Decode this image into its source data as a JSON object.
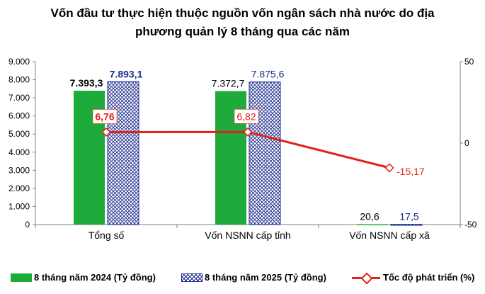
{
  "chart_data": {
    "type": "bar",
    "title": [
      "Vốn đầu tư thực hiện thuộc nguồn vốn ngân sách nhà nước do địa",
      "phương quản lý 8 tháng qua các năm"
    ],
    "categories": [
      "Tổng số",
      "Vốn NSNN cấp tỉnh",
      "Vốn NSNN cấp xã"
    ],
    "series": [
      {
        "name": "8 tháng năm 2024 (Tỷ đồng)",
        "kind": "bar",
        "axis": "left",
        "values": [
          7393.3,
          7372.7,
          20.6
        ],
        "labels": [
          "7.393,3",
          "7.372,7",
          "20,6"
        ],
        "color": "#1faa3c"
      },
      {
        "name": "8 tháng năm 2025 (Tỷ đồng)",
        "kind": "bar",
        "axis": "left",
        "pattern": "crosshatch",
        "values": [
          7893.1,
          7875.6,
          17.5
        ],
        "labels": [
          "7.893,1",
          "7.875,6",
          "17,5"
        ],
        "color": "#1a2a8a"
      },
      {
        "name": "Tốc độ phát triển (%)",
        "kind": "line",
        "axis": "right",
        "marker": "diamond",
        "values": [
          6.76,
          6.82,
          -15.17
        ],
        "labels": [
          "6,76",
          "6,82",
          "-15,17"
        ],
        "color": "#e3211c"
      }
    ],
    "y_left": {
      "ylim": [
        0,
        9000
      ],
      "ticks": [
        "0",
        "1.000",
        "2.000",
        "3.000",
        "4.000",
        "5.000",
        "6.000",
        "7.000",
        "8.000",
        "9.000"
      ]
    },
    "y_right": {
      "ylim": [
        -50,
        50
      ],
      "ticks": [
        "-50",
        "0",
        "50"
      ]
    },
    "grid": false,
    "legend": "bottom"
  }
}
